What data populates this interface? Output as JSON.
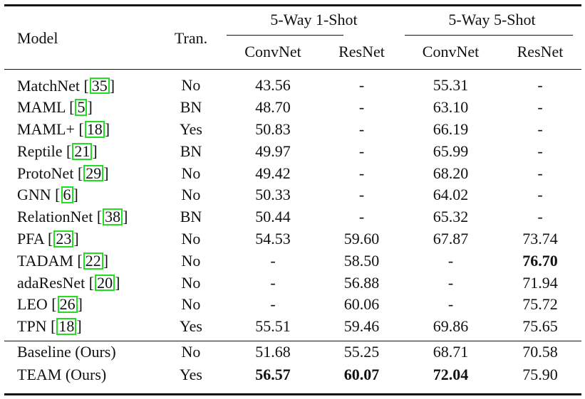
{
  "table": {
    "headers": {
      "model": "Model",
      "tran": "Tran.",
      "group1": "5-Way 1-Shot",
      "group2": "5-Way 5-Shot",
      "sub": [
        "ConvNet",
        "ResNet",
        "ConvNet",
        "ResNet"
      ]
    },
    "rows": [
      {
        "model": "MatchNet",
        "ref": "35",
        "tran": "No",
        "c1": "43.56",
        "r1": "-",
        "c5": "55.31",
        "r5": "-"
      },
      {
        "model": "MAML",
        "ref": "5",
        "tran": "BN",
        "c1": "48.70",
        "r1": "-",
        "c5": "63.10",
        "r5": "-"
      },
      {
        "model": "MAML+",
        "ref": "18",
        "tran": "Yes",
        "c1": "50.83",
        "r1": "-",
        "c5": "66.19",
        "r5": "-"
      },
      {
        "model": "Reptile",
        "ref": "21",
        "tran": "BN",
        "c1": "49.97",
        "r1": "-",
        "c5": "65.99",
        "r5": "-"
      },
      {
        "model": "ProtoNet",
        "ref": "29",
        "tran": "No",
        "c1": "49.42",
        "r1": "-",
        "c5": "68.20",
        "r5": "-"
      },
      {
        "model": "GNN",
        "ref": "6",
        "tran": "No",
        "c1": "50.33",
        "r1": "-",
        "c5": "64.02",
        "r5": "-"
      },
      {
        "model": "RelationNet",
        "ref": "38",
        "tran": "BN",
        "c1": "50.44",
        "r1": "-",
        "c5": "65.32",
        "r5": "-"
      },
      {
        "model": "PFA",
        "ref": "23",
        "tran": "No",
        "c1": "54.53",
        "r1": "59.60",
        "c5": "67.87",
        "r5": "73.74"
      },
      {
        "model": "TADAM",
        "ref": "22",
        "tran": "No",
        "c1": "-",
        "r1": "58.50",
        "c5": "-",
        "r5": "76.70",
        "bold": [
          "r5"
        ]
      },
      {
        "model": "adaResNet",
        "ref": "20",
        "tran": "No",
        "c1": "-",
        "r1": "56.88",
        "c5": "-",
        "r5": "71.94"
      },
      {
        "model": "LEO",
        "ref": "26",
        "tran": "No",
        "c1": "-",
        "r1": "60.06",
        "c5": "-",
        "r5": "75.72"
      },
      {
        "model": "TPN",
        "ref": "18",
        "tran": "Yes",
        "c1": "55.51",
        "r1": "59.46",
        "c5": "69.86",
        "r5": "75.65"
      }
    ],
    "ours": [
      {
        "model": "Baseline (Ours)",
        "tran": "No",
        "c1": "51.68",
        "r1": "55.25",
        "c5": "68.71",
        "r5": "70.58"
      },
      {
        "model": "TEAM (Ours)",
        "tran": "Yes",
        "c1": "56.57",
        "r1": "60.07",
        "c5": "72.04",
        "r5": "75.90",
        "bold": [
          "c1",
          "r1",
          "c5"
        ]
      }
    ],
    "ref_box_color": "#22dd22"
  }
}
